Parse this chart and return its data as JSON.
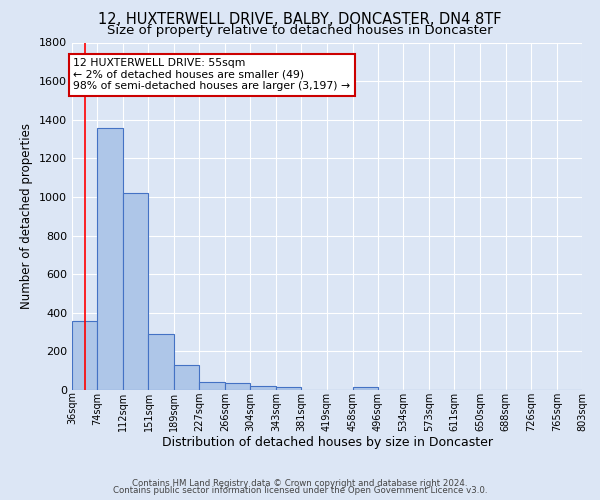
{
  "title1": "12, HUXTERWELL DRIVE, BALBY, DONCASTER, DN4 8TF",
  "title2": "Size of property relative to detached houses in Doncaster",
  "xlabel": "Distribution of detached houses by size in Doncaster",
  "ylabel": "Number of detached properties",
  "footnote1": "Contains HM Land Registry data © Crown copyright and database right 2024.",
  "footnote2": "Contains public sector information licensed under the Open Government Licence v3.0.",
  "bin_labels": [
    "36sqm",
    "74sqm",
    "112sqm",
    "151sqm",
    "189sqm",
    "227sqm",
    "266sqm",
    "304sqm",
    "343sqm",
    "381sqm",
    "419sqm",
    "458sqm",
    "496sqm",
    "534sqm",
    "573sqm",
    "611sqm",
    "650sqm",
    "688sqm",
    "726sqm",
    "765sqm",
    "803sqm"
  ],
  "bin_edges": [
    36,
    74,
    112,
    151,
    189,
    227,
    266,
    304,
    343,
    381,
    419,
    458,
    496,
    534,
    573,
    611,
    650,
    688,
    726,
    765,
    803
  ],
  "bar_values": [
    355,
    1355,
    1020,
    288,
    130,
    43,
    35,
    20,
    15,
    0,
    0,
    15,
    0,
    0,
    0,
    0,
    0,
    0,
    0,
    0
  ],
  "bar_color": "#aec6e8",
  "bar_edge_color": "#4472c4",
  "property_line_x": 55,
  "annotation_text": "12 HUXTERWELL DRIVE: 55sqm\n← 2% of detached houses are smaller (49)\n98% of semi-detached houses are larger (3,197) →",
  "annotation_box_color": "#ffffff",
  "annotation_box_edge": "#cc0000",
  "ylim": [
    0,
    1800
  ],
  "background_color": "#dce6f5",
  "grid_color": "#ffffff",
  "title1_fontsize": 10.5,
  "title2_fontsize": 9.5,
  "xlabel_fontsize": 9,
  "ylabel_fontsize": 8.5,
  "footnote_fontsize": 6.2,
  "yticks": [
    0,
    200,
    400,
    600,
    800,
    1000,
    1200,
    1400,
    1600,
    1800
  ]
}
